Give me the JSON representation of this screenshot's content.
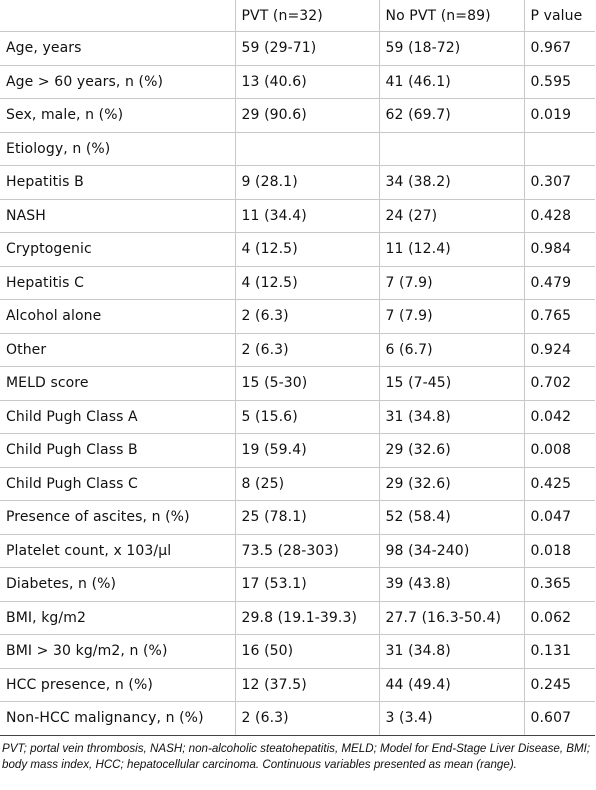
{
  "table": {
    "headers": [
      "",
      "PVT (n=32)",
      "No PVT (n=89)",
      "P value"
    ],
    "rows": [
      [
        "Age, years",
        "59 (29-71)",
        "59 (18-72)",
        "0.967"
      ],
      [
        "Age > 60 years, n (%)",
        "13 (40.6)",
        "41 (46.1)",
        "0.595"
      ],
      [
        "Sex, male, n (%)",
        "29 (90.6)",
        "62 (69.7)",
        "0.019"
      ],
      [
        "Etiology, n (%)",
        "",
        "",
        ""
      ],
      [
        "Hepatitis B",
        "9 (28.1)",
        "34 (38.2)",
        "0.307"
      ],
      [
        "NASH",
        "11 (34.4)",
        "24 (27)",
        "0.428"
      ],
      [
        "Cryptogenic",
        "4 (12.5)",
        "11 (12.4)",
        "0.984"
      ],
      [
        "Hepatitis C",
        "4 (12.5)",
        "7 (7.9)",
        "0.479"
      ],
      [
        "Alcohol alone",
        "2 (6.3)",
        "7 (7.9)",
        "0.765"
      ],
      [
        "Other",
        "2 (6.3)",
        "6 (6.7)",
        "0.924"
      ],
      [
        "MELD score",
        "15 (5-30)",
        "15 (7-45)",
        "0.702"
      ],
      [
        "Child Pugh Class A",
        "5 (15.6)",
        "31 (34.8)",
        "0.042"
      ],
      [
        "Child Pugh Class B",
        "19 (59.4)",
        "29 (32.6)",
        "0.008"
      ],
      [
        "Child Pugh Class C",
        "8 (25)",
        "29 (32.6)",
        "0.425"
      ],
      [
        "Presence of ascites, n (%)",
        "25 (78.1)",
        "52 (58.4)",
        "0.047"
      ],
      [
        "Platelet count, x 103/µl",
        "73.5 (28-303)",
        "98 (34-240)",
        "0.018"
      ],
      [
        "Diabetes, n (%)",
        "17 (53.1)",
        "39 (43.8)",
        "0.365"
      ],
      [
        "BMI, kg/m2",
        "29.8 (19.1-39.3)",
        "27.7 (16.3-50.4)",
        "0.062"
      ],
      [
        "BMI > 30 kg/m2, n (%)",
        "16 (50)",
        "31 (34.8)",
        "0.131"
      ],
      [
        "HCC presence, n (%)",
        "12 (37.5)",
        "44 (49.4)",
        "0.245"
      ],
      [
        "Non-HCC malignancy, n (%)",
        "2 (6.3)",
        "3 (3.4)",
        "0.607"
      ]
    ]
  },
  "footnote": "PVT; portal vein thrombosis, NASH; non-alcoholic steatohepatitis, MELD; Model for End-Stage Liver Disease, BMI; body mass index, HCC; hepatocellular carcinoma. Continuous variables presented as mean (range)."
}
